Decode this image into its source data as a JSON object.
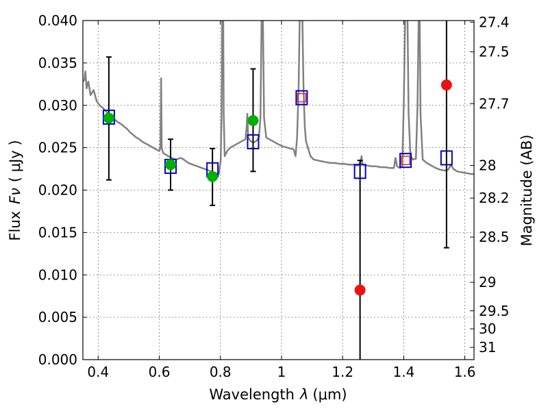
{
  "chart_data": {
    "type": "scatter",
    "xlabel_prefix": "Wavelength",
    "xlabel_symbol": "λ",
    "xlabel_unit": "(μm)",
    "ylabel_prefix": "Flux",
    "ylabel_symbol": "Fν",
    "ylabel_unit": "( μJy )",
    "y2label": "Magnitude (AB)",
    "xlim": [
      0.35,
      1.63
    ],
    "ylim": [
      0.0,
      0.04
    ],
    "grid": true,
    "x_ticks": [
      {
        "value": 0.4,
        "label": "0.4"
      },
      {
        "value": 0.6,
        "label": "0.6"
      },
      {
        "value": 0.8,
        "label": "0.8"
      },
      {
        "value": 1.0,
        "label": "1"
      },
      {
        "value": 1.2,
        "label": "1.2"
      },
      {
        "value": 1.4,
        "label": "1.4"
      },
      {
        "value": 1.6,
        "label": "1.6"
      }
    ],
    "y_ticks": [
      {
        "value": 0.0,
        "label": "0.000"
      },
      {
        "value": 0.005,
        "label": "0.005"
      },
      {
        "value": 0.01,
        "label": "0.010"
      },
      {
        "value": 0.015,
        "label": "0.015"
      },
      {
        "value": 0.02,
        "label": "0.020"
      },
      {
        "value": 0.025,
        "label": "0.025"
      },
      {
        "value": 0.03,
        "label": "0.030"
      },
      {
        "value": 0.035,
        "label": "0.035"
      },
      {
        "value": 0.04,
        "label": "0.040"
      }
    ],
    "mag_ticks": [
      {
        "mag": 27.4,
        "label": "27.4"
      },
      {
        "mag": 27.5,
        "label": "27.5"
      },
      {
        "mag": 27.7,
        "label": "27.7"
      },
      {
        "mag": 28.0,
        "label": "28"
      },
      {
        "mag": 28.2,
        "label": "28.2"
      },
      {
        "mag": 28.5,
        "label": "28.5"
      },
      {
        "mag": 29.0,
        "label": "29"
      },
      {
        "mag": 29.5,
        "label": "29.5"
      },
      {
        "mag": 30.0,
        "label": "30"
      },
      {
        "mag": 31.0,
        "label": "31"
      }
    ],
    "template_spectrum": {
      "color": "#808080",
      "points": [
        [
          0.35,
          0.0328
        ],
        [
          0.355,
          0.033
        ],
        [
          0.358,
          0.034
        ],
        [
          0.362,
          0.032
        ],
        [
          0.368,
          0.0328
        ],
        [
          0.375,
          0.0312
        ],
        [
          0.385,
          0.0318
        ],
        [
          0.395,
          0.0305
        ],
        [
          0.405,
          0.03
        ],
        [
          0.415,
          0.0297
        ],
        [
          0.425,
          0.0293
        ],
        [
          0.435,
          0.029
        ],
        [
          0.445,
          0.0287
        ],
        [
          0.455,
          0.0283
        ],
        [
          0.465,
          0.028
        ],
        [
          0.475,
          0.0278
        ],
        [
          0.485,
          0.0275
        ],
        [
          0.495,
          0.0272
        ],
        [
          0.505,
          0.0268
        ],
        [
          0.515,
          0.0265
        ],
        [
          0.525,
          0.0262
        ],
        [
          0.535,
          0.026
        ],
        [
          0.545,
          0.0257
        ],
        [
          0.555,
          0.0255
        ],
        [
          0.565,
          0.0253
        ],
        [
          0.575,
          0.0251
        ],
        [
          0.585,
          0.0249
        ],
        [
          0.595,
          0.0247
        ],
        [
          0.6,
          0.0246
        ],
        [
          0.604,
          0.025
        ],
        [
          0.606,
          0.0332
        ],
        [
          0.608,
          0.025
        ],
        [
          0.612,
          0.0244
        ],
        [
          0.625,
          0.0241
        ],
        [
          0.64,
          0.0238
        ],
        [
          0.655,
          0.0236
        ],
        [
          0.67,
          0.0238
        ],
        [
          0.68,
          0.0236
        ],
        [
          0.695,
          0.0232
        ],
        [
          0.71,
          0.023
        ],
        [
          0.725,
          0.0228
        ],
        [
          0.74,
          0.0226
        ],
        [
          0.755,
          0.0224
        ],
        [
          0.77,
          0.0222
        ],
        [
          0.785,
          0.022
        ],
        [
          0.795,
          0.0219
        ],
        [
          0.801,
          0.0235
        ],
        [
          0.804,
          0.029
        ],
        [
          0.806,
          0.041
        ],
        [
          0.809,
          0.041
        ],
        [
          0.811,
          0.029
        ],
        [
          0.814,
          0.024
        ],
        [
          0.822,
          0.0246
        ],
        [
          0.832,
          0.025
        ],
        [
          0.842,
          0.0252
        ],
        [
          0.852,
          0.0254
        ],
        [
          0.862,
          0.0256
        ],
        [
          0.872,
          0.0258
        ],
        [
          0.882,
          0.026
        ],
        [
          0.886,
          0.0275
        ],
        [
          0.888,
          0.029
        ],
        [
          0.891,
          0.0262
        ],
        [
          0.898,
          0.0258
        ],
        [
          0.908,
          0.0256
        ],
        [
          0.918,
          0.0258
        ],
        [
          0.926,
          0.0262
        ],
        [
          0.931,
          0.0285
        ],
        [
          0.935,
          0.041
        ],
        [
          0.939,
          0.041
        ],
        [
          0.943,
          0.0285
        ],
        [
          0.95,
          0.0262
        ],
        [
          0.96,
          0.026
        ],
        [
          0.97,
          0.0258
        ],
        [
          0.98,
          0.0256
        ],
        [
          0.99,
          0.0254
        ],
        [
          1.0,
          0.0252
        ],
        [
          1.01,
          0.0251
        ],
        [
          1.02,
          0.025
        ],
        [
          1.03,
          0.0249
        ],
        [
          1.04,
          0.0248
        ],
        [
          1.046,
          0.024
        ],
        [
          1.051,
          0.0262
        ],
        [
          1.056,
          0.032
        ],
        [
          1.06,
          0.041
        ],
        [
          1.068,
          0.041
        ],
        [
          1.072,
          0.032
        ],
        [
          1.076,
          0.0276
        ],
        [
          1.08,
          0.0258
        ],
        [
          1.088,
          0.0248
        ],
        [
          1.095,
          0.024
        ],
        [
          1.105,
          0.0236
        ],
        [
          1.118,
          0.0235
        ],
        [
          1.13,
          0.0234
        ],
        [
          1.145,
          0.0233
        ],
        [
          1.16,
          0.0232
        ],
        [
          1.175,
          0.0232
        ],
        [
          1.19,
          0.0231
        ],
        [
          1.205,
          0.0231
        ],
        [
          1.22,
          0.023
        ],
        [
          1.235,
          0.023
        ],
        [
          1.25,
          0.0229
        ],
        [
          1.258,
          0.0232
        ],
        [
          1.262,
          0.024
        ],
        [
          1.265,
          0.023
        ],
        [
          1.28,
          0.0229
        ],
        [
          1.295,
          0.0228
        ],
        [
          1.31,
          0.0228
        ],
        [
          1.325,
          0.0227
        ],
        [
          1.34,
          0.0227
        ],
        [
          1.355,
          0.0226
        ],
        [
          1.368,
          0.0226
        ],
        [
          1.373,
          0.0238
        ],
        [
          1.378,
          0.0228
        ],
        [
          1.388,
          0.0226
        ],
        [
          1.395,
          0.0228
        ],
        [
          1.4,
          0.03
        ],
        [
          1.405,
          0.041
        ],
        [
          1.412,
          0.041
        ],
        [
          1.416,
          0.029
        ],
        [
          1.422,
          0.024
        ],
        [
          1.43,
          0.0236
        ],
        [
          1.44,
          0.0237
        ],
        [
          1.445,
          0.03
        ],
        [
          1.449,
          0.041
        ],
        [
          1.452,
          0.041
        ],
        [
          1.455,
          0.029
        ],
        [
          1.462,
          0.0236
        ],
        [
          1.475,
          0.0232
        ],
        [
          1.49,
          0.0229
        ],
        [
          1.505,
          0.0226
        ],
        [
          1.52,
          0.0224
        ],
        [
          1.535,
          0.0223
        ],
        [
          1.545,
          0.0224
        ],
        [
          1.555,
          0.023
        ],
        [
          1.562,
          0.0225
        ],
        [
          1.575,
          0.0222
        ],
        [
          1.59,
          0.0221
        ],
        [
          1.605,
          0.022
        ],
        [
          1.62,
          0.0219
        ],
        [
          1.63,
          0.0219
        ]
      ]
    },
    "model_points": {
      "color": "#0000cc",
      "marker": "open-square",
      "points": [
        [
          0.435,
          0.0286
        ],
        [
          0.637,
          0.0228
        ],
        [
          0.774,
          0.0224
        ],
        [
          0.907,
          0.0257
        ],
        [
          1.066,
          0.0309
        ],
        [
          1.257,
          0.0222
        ],
        [
          1.406,
          0.0235
        ],
        [
          1.54,
          0.0238
        ]
      ]
    },
    "upper_limit_points": {
      "color": "#ee2222",
      "marker": "small-open-square",
      "points": [
        [
          1.066,
          0.0309
        ],
        [
          1.406,
          0.0235
        ]
      ]
    },
    "detections": {
      "color": "#00b000",
      "marker": "filled-circle",
      "points": [
        {
          "x": 0.435,
          "y": 0.0285,
          "ylo": 0.0212,
          "yhi": 0.0357
        },
        {
          "x": 0.637,
          "y": 0.023,
          "ylo": 0.02,
          "yhi": 0.026
        },
        {
          "x": 0.774,
          "y": 0.0216,
          "ylo": 0.0182,
          "yhi": 0.0249
        },
        {
          "x": 0.907,
          "y": 0.0282,
          "ylo": 0.0222,
          "yhi": 0.0343
        }
      ]
    },
    "low_sn_points": {
      "color": "#ee1111",
      "marker": "filled-circle",
      "points": [
        {
          "x": 1.257,
          "y": 0.0082,
          "ylo": 0.0,
          "yhi": 0.0235
        },
        {
          "x": 1.54,
          "y": 0.0324,
          "ylo": 0.0132,
          "yhi": 0.041
        }
      ]
    }
  }
}
